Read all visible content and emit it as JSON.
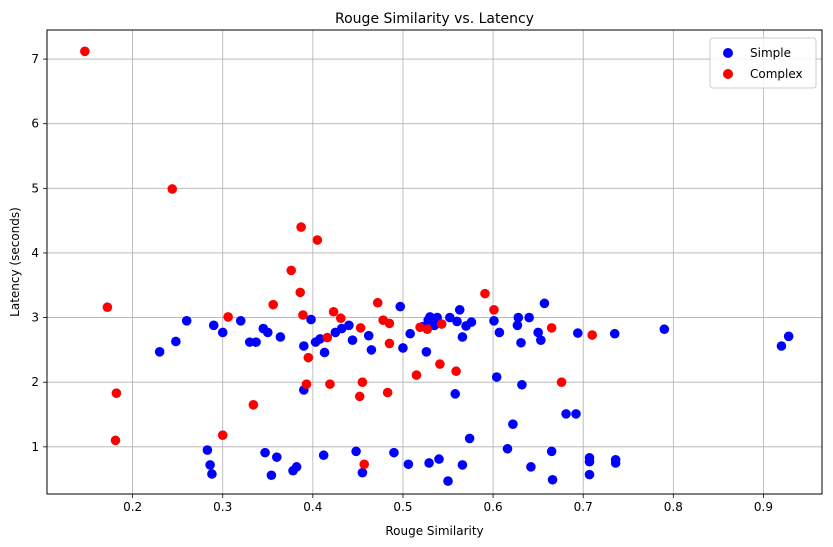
{
  "chart_data": {
    "type": "scatter",
    "title": "Rouge Similarity vs. Latency",
    "xlabel": "Rouge Similarity",
    "ylabel": "Latency (seconds)",
    "xlim": [
      0.105,
      0.965
    ],
    "ylim": [
      0.27,
      7.45
    ],
    "xticks": [
      0.2,
      0.3,
      0.4,
      0.5,
      0.6,
      0.7,
      0.8,
      0.9
    ],
    "xtick_labels": [
      "0.2",
      "0.3",
      "0.4",
      "0.5",
      "0.6",
      "0.7",
      "0.8",
      "0.9"
    ],
    "yticks": [
      1,
      2,
      3,
      4,
      5,
      6,
      7
    ],
    "ytick_labels": [
      "1",
      "2",
      "3",
      "4",
      "5",
      "6",
      "7"
    ],
    "grid": true,
    "legend_position": "top-right",
    "series": [
      {
        "name": "Simple",
        "color": "#0000ff",
        "points": [
          [
            0.23,
            2.47
          ],
          [
            0.248,
            2.63
          ],
          [
            0.26,
            2.95
          ],
          [
            0.283,
            0.95
          ],
          [
            0.286,
            0.72
          ],
          [
            0.288,
            0.58
          ],
          [
            0.29,
            2.88
          ],
          [
            0.3,
            2.77
          ],
          [
            0.32,
            2.95
          ],
          [
            0.33,
            2.62
          ],
          [
            0.337,
            2.62
          ],
          [
            0.345,
            2.83
          ],
          [
            0.347,
            0.91
          ],
          [
            0.35,
            2.77
          ],
          [
            0.354,
            0.56
          ],
          [
            0.36,
            0.84
          ],
          [
            0.364,
            2.7
          ],
          [
            0.378,
            0.63
          ],
          [
            0.382,
            0.69
          ],
          [
            0.39,
            2.56
          ],
          [
            0.39,
            1.88
          ],
          [
            0.398,
            2.97
          ],
          [
            0.403,
            2.62
          ],
          [
            0.408,
            2.67
          ],
          [
            0.412,
            0.87
          ],
          [
            0.413,
            2.46
          ],
          [
            0.425,
            2.77
          ],
          [
            0.432,
            2.83
          ],
          [
            0.44,
            2.88
          ],
          [
            0.444,
            2.65
          ],
          [
            0.448,
            0.93
          ],
          [
            0.455,
            0.6
          ],
          [
            0.462,
            2.72
          ],
          [
            0.465,
            2.5
          ],
          [
            0.49,
            0.91
          ],
          [
            0.497,
            3.17
          ],
          [
            0.5,
            2.53
          ],
          [
            0.506,
            0.73
          ],
          [
            0.508,
            2.75
          ],
          [
            0.522,
            2.86
          ],
          [
            0.526,
            2.47
          ],
          [
            0.528,
            2.96
          ],
          [
            0.529,
            0.75
          ],
          [
            0.53,
            3.01
          ],
          [
            0.535,
            2.88
          ],
          [
            0.538,
            3.0
          ],
          [
            0.54,
            0.81
          ],
          [
            0.55,
            0.47
          ],
          [
            0.552,
            3.0
          ],
          [
            0.558,
            1.82
          ],
          [
            0.56,
            2.94
          ],
          [
            0.563,
            3.12
          ],
          [
            0.566,
            0.72
          ],
          [
            0.566,
            2.7
          ],
          [
            0.57,
            2.87
          ],
          [
            0.574,
            1.13
          ],
          [
            0.576,
            2.93
          ],
          [
            0.601,
            2.95
          ],
          [
            0.604,
            2.08
          ],
          [
            0.607,
            2.77
          ],
          [
            0.616,
            0.97
          ],
          [
            0.622,
            1.35
          ],
          [
            0.627,
            2.88
          ],
          [
            0.628,
            3.0
          ],
          [
            0.631,
            2.61
          ],
          [
            0.632,
            1.96
          ],
          [
            0.64,
            3.0
          ],
          [
            0.642,
            0.69
          ],
          [
            0.65,
            2.77
          ],
          [
            0.653,
            2.65
          ],
          [
            0.657,
            3.22
          ],
          [
            0.665,
            0.93
          ],
          [
            0.666,
            0.49
          ],
          [
            0.681,
            1.51
          ],
          [
            0.692,
            1.51
          ],
          [
            0.694,
            2.76
          ],
          [
            0.707,
            0.83
          ],
          [
            0.707,
            0.57
          ],
          [
            0.707,
            0.77
          ],
          [
            0.735,
            2.75
          ],
          [
            0.736,
            0.8
          ],
          [
            0.736,
            0.75
          ],
          [
            0.79,
            2.82
          ],
          [
            0.92,
            2.56
          ],
          [
            0.928,
            2.71
          ]
        ]
      },
      {
        "name": "Complex",
        "color": "#ff0000",
        "points": [
          [
            0.147,
            7.12
          ],
          [
            0.172,
            3.16
          ],
          [
            0.181,
            1.1
          ],
          [
            0.182,
            1.83
          ],
          [
            0.244,
            4.99
          ],
          [
            0.3,
            1.18
          ],
          [
            0.306,
            3.01
          ],
          [
            0.334,
            1.65
          ],
          [
            0.356,
            3.2
          ],
          [
            0.376,
            3.73
          ],
          [
            0.386,
            3.39
          ],
          [
            0.387,
            4.4
          ],
          [
            0.389,
            3.04
          ],
          [
            0.393,
            1.97
          ],
          [
            0.395,
            2.38
          ],
          [
            0.405,
            4.2
          ],
          [
            0.416,
            2.69
          ],
          [
            0.419,
            1.97
          ],
          [
            0.423,
            3.09
          ],
          [
            0.431,
            2.99
          ],
          [
            0.452,
            1.78
          ],
          [
            0.453,
            2.84
          ],
          [
            0.455,
            2.0
          ],
          [
            0.457,
            0.73
          ],
          [
            0.472,
            3.23
          ],
          [
            0.478,
            2.96
          ],
          [
            0.483,
            1.84
          ],
          [
            0.485,
            2.91
          ],
          [
            0.485,
            2.6
          ],
          [
            0.515,
            2.11
          ],
          [
            0.519,
            2.85
          ],
          [
            0.527,
            2.82
          ],
          [
            0.541,
            2.28
          ],
          [
            0.543,
            2.9
          ],
          [
            0.559,
            2.17
          ],
          [
            0.591,
            3.37
          ],
          [
            0.601,
            3.12
          ],
          [
            0.665,
            2.84
          ],
          [
            0.676,
            2.0
          ],
          [
            0.71,
            2.73
          ]
        ]
      }
    ]
  }
}
